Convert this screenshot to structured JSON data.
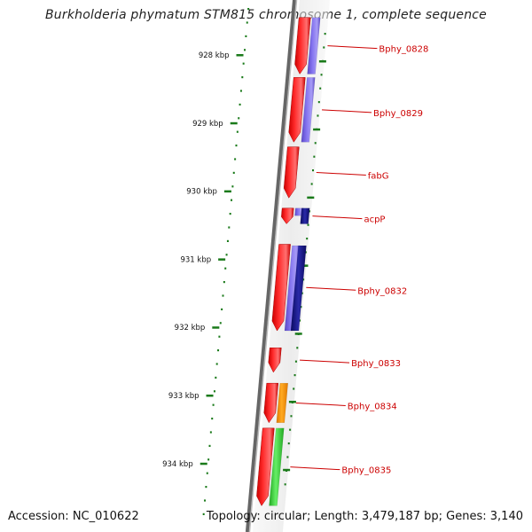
{
  "title": "Burkholderia phymatum STM815 chromosome 1, complete sequence",
  "footer": {
    "accession": "Accession: NC_010622",
    "summary": "Topology: circular; Length: 3,479,187 bp; Genes: 3,140"
  },
  "colors": {
    "axis_ticks": "#1a7a1a",
    "gene_label": "#cc0000",
    "backbone": "#777777",
    "forward_cds": "#ff1111",
    "cds_purple": "#7b68ee",
    "cds_navy": "#1a1a8c",
    "cds_orange": "#ff9900",
    "cds_green": "#33cc33"
  },
  "chart_data": {
    "type": "genome-map",
    "scale": {
      "unit": "kbp",
      "ticks": [
        {
          "position_kbp": 928,
          "label": "928 kbp"
        },
        {
          "position_kbp": 929,
          "label": "929 kbp"
        },
        {
          "position_kbp": 930,
          "label": "930 kbp"
        },
        {
          "position_kbp": 931,
          "label": "931 kbp"
        },
        {
          "position_kbp": 932,
          "label": "932 kbp"
        },
        {
          "position_kbp": 933,
          "label": "933 kbp"
        },
        {
          "position_kbp": 934,
          "label": "934 kbp"
        }
      ]
    },
    "genes": [
      {
        "name": "Bphy_0828",
        "start_kbp": 927.45,
        "end_kbp": 928.28
      },
      {
        "name": "Bphy_0829",
        "start_kbp": 928.33,
        "end_kbp": 929.28
      },
      {
        "name": "fabG",
        "start_kbp": 929.35,
        "end_kbp": 930.1
      },
      {
        "name": "acpP",
        "start_kbp": 930.25,
        "end_kbp": 930.48
      },
      {
        "name": "Bphy_0832",
        "start_kbp": 930.78,
        "end_kbp": 932.05
      },
      {
        "name": "Bphy_0833",
        "start_kbp": 932.3,
        "end_kbp": 932.66
      },
      {
        "name": "Bphy_0834",
        "start_kbp": 932.82,
        "end_kbp": 933.4
      },
      {
        "name": "Bphy_0835",
        "start_kbp": 933.48,
        "end_kbp": 934.62
      }
    ],
    "feature_tracks": [
      {
        "track": "cds-b",
        "color_key": "cds_purple",
        "start_kbp": 927.45,
        "end_kbp": 928.28
      },
      {
        "track": "cds-b",
        "color_key": "cds_purple",
        "start_kbp": 928.33,
        "end_kbp": 929.28
      },
      {
        "track": "cds-b",
        "color_key": "cds_purple",
        "start_kbp": 930.25,
        "end_kbp": 930.36
      },
      {
        "track": "cds-c",
        "color_key": "cds_navy",
        "start_kbp": 930.25,
        "end_kbp": 930.48
      },
      {
        "track": "cds-b",
        "color_key": "cds_purple",
        "start_kbp": 930.8,
        "end_kbp": 932.05
      },
      {
        "track": "cds-c",
        "color_key": "cds_navy",
        "start_kbp": 930.8,
        "end_kbp": 932.05
      },
      {
        "track": "cds-b",
        "color_key": "cds_orange",
        "start_kbp": 932.82,
        "end_kbp": 933.4
      },
      {
        "track": "cds-b",
        "color_key": "cds_green",
        "start_kbp": 933.48,
        "end_kbp": 934.62
      }
    ]
  }
}
